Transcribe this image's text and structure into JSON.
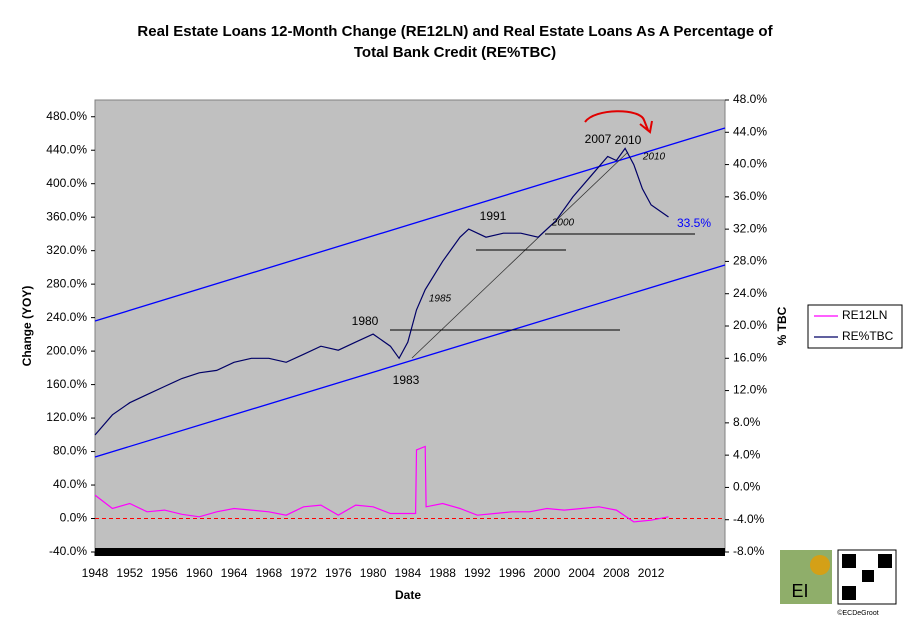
{
  "chart_data": {
    "type": "line",
    "title": "Real Estate Loans 12-Month Change (RE12LN) and Real Estate Loans As A Percentage of",
    "subtitle": "Total Bank Credit (RE%TBC)",
    "x_label": "Date",
    "y_label": "Change (YOY)",
    "y2_label": "% TBC",
    "xlim": [
      1948,
      2020.5
    ],
    "xticks": [
      1948,
      1952,
      1956,
      1960,
      1964,
      1968,
      1972,
      1976,
      1980,
      1984,
      1988,
      1992,
      1996,
      2000,
      2004,
      2008,
      2012
    ],
    "ylim": [
      -40,
      500
    ],
    "yticks": [
      {
        "value": -40,
        "label": "-40.0%"
      },
      {
        "value": 0,
        "label": "0.0%"
      },
      {
        "value": 40,
        "label": "40.0%"
      },
      {
        "value": 80,
        "label": "80.0%"
      },
      {
        "value": 120,
        "label": "120.0%"
      },
      {
        "value": 160,
        "label": "160.0%"
      },
      {
        "value": 200,
        "label": "200.0%"
      },
      {
        "value": 240,
        "label": "240.0%"
      },
      {
        "value": 280,
        "label": "280.0%"
      },
      {
        "value": 320,
        "label": "320.0%"
      },
      {
        "value": 360,
        "label": "360.0%"
      },
      {
        "value": 400,
        "label": "400.0%"
      },
      {
        "value": 440,
        "label": "440.0%"
      },
      {
        "value": 480,
        "label": "480.0%"
      }
    ],
    "y2lim": [
      -8,
      48
    ],
    "y2ticks": [
      {
        "value": -8,
        "label": "-8.0%"
      },
      {
        "value": -4,
        "label": "-4.0%"
      },
      {
        "value": 0,
        "label": "0.0%"
      },
      {
        "value": 4,
        "label": "4.0%"
      },
      {
        "value": 8,
        "label": "8.0%"
      },
      {
        "value": 12,
        "label": "12.0%"
      },
      {
        "value": 16,
        "label": "16.0%"
      },
      {
        "value": 20,
        "label": "20.0%"
      },
      {
        "value": 24,
        "label": "24.0%"
      },
      {
        "value": 28,
        "label": "28.0%"
      },
      {
        "value": 32,
        "label": "32.0%"
      },
      {
        "value": 36,
        "label": "36.0%"
      },
      {
        "value": 40,
        "label": "40.0%"
      },
      {
        "value": 44,
        "label": "44.0%"
      },
      {
        "value": 48,
        "label": "48.0%"
      }
    ],
    "series": [
      {
        "name": "RE12LN",
        "color": "#ff00ff",
        "axis": "y",
        "x": [
          1948,
          1950,
          1952,
          1954,
          1956,
          1958,
          1960,
          1962,
          1964,
          1966,
          1968,
          1970,
          1972,
          1974,
          1976,
          1978,
          1980,
          1982,
          1984.9,
          1985,
          1986,
          1986.1,
          1988,
          1990,
          1992,
          1994,
          1996,
          1998,
          2000,
          2002,
          2004,
          2006,
          2008,
          2010,
          2012,
          2014
        ],
        "values": [
          28,
          12,
          18,
          8,
          10,
          5,
          2,
          8,
          12,
          10,
          8,
          4,
          14,
          16,
          4,
          16,
          14,
          6,
          6,
          82,
          86,
          14,
          18,
          12,
          4,
          6,
          8,
          8,
          12,
          10,
          12,
          14,
          10,
          -4,
          -2,
          2
        ]
      },
      {
        "name": "RE%TBC",
        "color": "#000066",
        "axis": "y2",
        "x": [
          1948,
          1950,
          1952,
          1954,
          1956,
          1958,
          1960,
          1962,
          1964,
          1966,
          1968,
          1970,
          1972,
          1974,
          1976,
          1978,
          1980,
          1982,
          1983,
          1984,
          1985,
          1986,
          1988,
          1990,
          1991,
          1993,
          1995,
          1997,
          1999,
          2001,
          2003,
          2005,
          2007,
          2008,
          2009,
          2010,
          2011,
          2012,
          2014
        ],
        "values": [
          6.5,
          9,
          10.5,
          11.5,
          12.5,
          13.5,
          14.2,
          14.5,
          15.5,
          16,
          16,
          15.5,
          16.5,
          17.5,
          17,
          18,
          19,
          17.5,
          16,
          18,
          22,
          24.5,
          28,
          31,
          32,
          31,
          31.5,
          31.5,
          31,
          33,
          36,
          38.5,
          41,
          40.5,
          42,
          40,
          37,
          35,
          33.5
        ]
      }
    ],
    "annotations": [
      "1980",
      "1983",
      "1991",
      "2007",
      "2010",
      "1985",
      "2000",
      "2010",
      "33.5%"
    ],
    "legend": "right"
  },
  "logo_text": "EI",
  "credit": "©ECDeGroot"
}
